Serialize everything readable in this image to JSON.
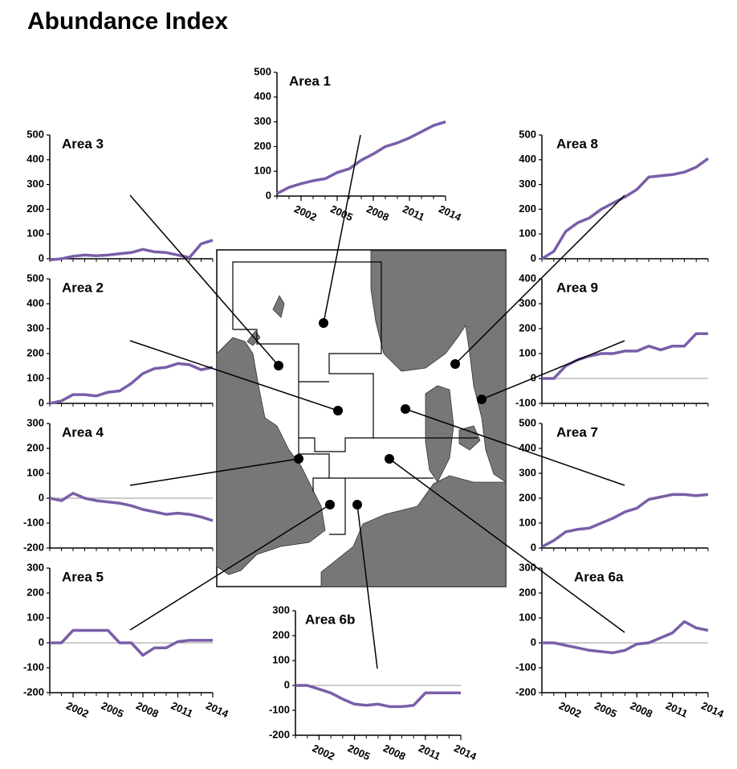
{
  "title": "Abundance Index",
  "chart_data": [
    {
      "type": "line",
      "title": "Area 1",
      "x": [
        2000,
        2001,
        2002,
        2003,
        2004,
        2005,
        2006,
        2007,
        2008,
        2009,
        2010,
        2011,
        2012,
        2013,
        2014
      ],
      "values": [
        10,
        35,
        50,
        62,
        70,
        95,
        110,
        145,
        170,
        200,
        215,
        235,
        260,
        285,
        300
      ],
      "color": "#7a5ea8",
      "xlim": [
        2000,
        2014
      ],
      "ylim": [
        0,
        500
      ],
      "yticks": [
        0,
        100,
        200,
        300,
        400,
        500
      ],
      "xticks": [
        2002,
        2005,
        2008,
        2011,
        2014
      ]
    },
    {
      "type": "line",
      "title": "Area 3",
      "x": [
        2000,
        2001,
        2002,
        2003,
        2004,
        2005,
        2006,
        2007,
        2008,
        2009,
        2010,
        2011,
        2012,
        2013,
        2014
      ],
      "values": [
        -5,
        0,
        10,
        15,
        12,
        15,
        20,
        25,
        38,
        28,
        25,
        15,
        5,
        60,
        75
      ],
      "color": "#7a5ea8",
      "xlim": [
        2000,
        2014
      ],
      "ylim": [
        0,
        500
      ],
      "yticks": [
        0,
        100,
        200,
        300,
        400,
        500
      ]
    },
    {
      "type": "line",
      "title": "Area 8",
      "x": [
        2000,
        2001,
        2002,
        2003,
        2004,
        2005,
        2006,
        2007,
        2008,
        2009,
        2010,
        2011,
        2012,
        2013,
        2014
      ],
      "values": [
        0,
        30,
        110,
        145,
        165,
        200,
        225,
        250,
        280,
        330,
        335,
        340,
        350,
        370,
        405
      ],
      "color": "#7a5ea8",
      "xlim": [
        2000,
        2014
      ],
      "ylim": [
        0,
        500
      ],
      "yticks": [
        0,
        100,
        200,
        300,
        400,
        500
      ]
    },
    {
      "type": "line",
      "title": "Area 2",
      "x": [
        2000,
        2001,
        2002,
        2003,
        2004,
        2005,
        2006,
        2007,
        2008,
        2009,
        2010,
        2011,
        2012,
        2013,
        2014
      ],
      "values": [
        0,
        10,
        35,
        35,
        30,
        45,
        50,
        80,
        120,
        140,
        145,
        160,
        155,
        135,
        145
      ],
      "color": "#7a5ea8",
      "xlim": [
        2000,
        2014
      ],
      "ylim": [
        0,
        500
      ],
      "yticks": [
        0,
        100,
        200,
        300,
        400,
        500
      ]
    },
    {
      "type": "line",
      "title": "Area 9",
      "x": [
        2000,
        2001,
        2002,
        2003,
        2004,
        2005,
        2006,
        2007,
        2008,
        2009,
        2010,
        2011,
        2012,
        2013,
        2014
      ],
      "values": [
        0,
        0,
        50,
        75,
        90,
        100,
        100,
        110,
        110,
        130,
        115,
        130,
        130,
        180,
        180
      ],
      "color": "#7a5ea8",
      "xlim": [
        2000,
        2014
      ],
      "ylim": [
        -100,
        400
      ],
      "yticks": [
        -100,
        0,
        100,
        200,
        300,
        400
      ]
    },
    {
      "type": "line",
      "title": "Area 4",
      "x": [
        2000,
        2001,
        2002,
        2003,
        2004,
        2005,
        2006,
        2007,
        2008,
        2009,
        2010,
        2011,
        2012,
        2013,
        2014
      ],
      "values": [
        0,
        -10,
        20,
        0,
        -10,
        -15,
        -20,
        -30,
        -45,
        -55,
        -65,
        -60,
        -65,
        -75,
        -90
      ],
      "color": "#7a5ea8",
      "xlim": [
        2000,
        2014
      ],
      "ylim": [
        -200,
        300
      ],
      "yticks": [
        -200,
        -100,
        0,
        100,
        200,
        300
      ]
    },
    {
      "type": "line",
      "title": "Area 7",
      "x": [
        2000,
        2001,
        2002,
        2003,
        2004,
        2005,
        2006,
        2007,
        2008,
        2009,
        2010,
        2011,
        2012,
        2013,
        2014
      ],
      "values": [
        5,
        30,
        65,
        75,
        80,
        100,
        120,
        145,
        160,
        195,
        205,
        215,
        215,
        210,
        215
      ],
      "color": "#7a5ea8",
      "xlim": [
        2000,
        2014
      ],
      "ylim": [
        0,
        500
      ],
      "yticks": [
        0,
        100,
        200,
        300,
        400,
        500
      ]
    },
    {
      "type": "line",
      "title": "Area 5",
      "x": [
        2000,
        2001,
        2002,
        2003,
        2004,
        2005,
        2006,
        2007,
        2008,
        2009,
        2010,
        2011,
        2012,
        2013,
        2014
      ],
      "values": [
        0,
        0,
        50,
        50,
        50,
        50,
        0,
        0,
        -50,
        -20,
        -20,
        5,
        10,
        10,
        10
      ],
      "color": "#7a5ea8",
      "xlim": [
        2000,
        2014
      ],
      "ylim": [
        -200,
        300
      ],
      "yticks": [
        -200,
        -100,
        0,
        100,
        200,
        300
      ],
      "xticks": [
        2002,
        2005,
        2008,
        2011,
        2014
      ]
    },
    {
      "type": "line",
      "title": "Area 6a",
      "x": [
        2000,
        2001,
        2002,
        2003,
        2004,
        2005,
        2006,
        2007,
        2008,
        2009,
        2010,
        2011,
        2012,
        2013,
        2014
      ],
      "values": [
        0,
        0,
        -10,
        -20,
        -30,
        -35,
        -40,
        -30,
        -5,
        0,
        20,
        40,
        85,
        60,
        50
      ],
      "color": "#7a5ea8",
      "xlim": [
        2000,
        2014
      ],
      "ylim": [
        -200,
        300
      ],
      "yticks": [
        -200,
        -100,
        0,
        100,
        200,
        300
      ],
      "xticks": [
        2002,
        2005,
        2008,
        2011,
        2014
      ]
    },
    {
      "type": "line",
      "title": "Area 6b",
      "x": [
        2000,
        2001,
        2002,
        2003,
        2004,
        2005,
        2006,
        2007,
        2008,
        2009,
        2010,
        2011,
        2012,
        2013,
        2014
      ],
      "values": [
        0,
        0,
        -15,
        -30,
        -55,
        -75,
        -80,
        -75,
        -85,
        -85,
        -80,
        -30,
        -30,
        -30,
        -30
      ],
      "color": "#7a5ea8",
      "xlim": [
        2000,
        2014
      ],
      "ylim": [
        -200,
        300
      ],
      "yticks": [
        -200,
        -100,
        0,
        100,
        200,
        300
      ],
      "xticks": [
        2002,
        2005,
        2008,
        2011,
        2014
      ]
    }
  ]
}
